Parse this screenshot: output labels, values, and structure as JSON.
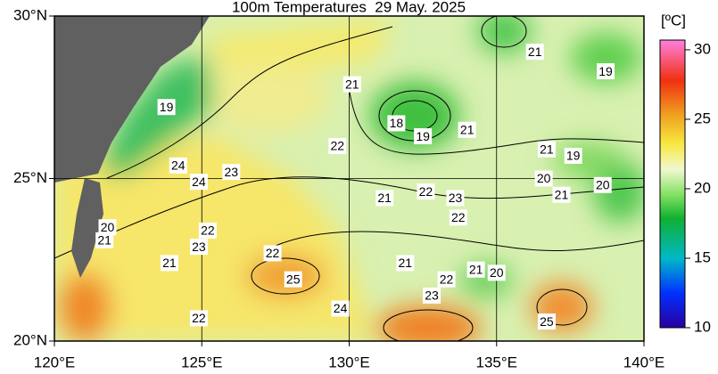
{
  "title": "100m Temperatures  29 May. 2025",
  "map": {
    "lonlim": [
      120,
      140
    ],
    "latlim": [
      20,
      30
    ],
    "xticks": [
      {
        "value": 120,
        "label": "120°E"
      },
      {
        "value": 125,
        "label": "125°E"
      },
      {
        "value": 130,
        "label": "130°E"
      },
      {
        "value": 135,
        "label": "135°E"
      },
      {
        "value": 140,
        "label": "140°E"
      }
    ],
    "yticks": [
      {
        "value": 20,
        "label": "20°N"
      },
      {
        "value": 25,
        "label": "25°N"
      },
      {
        "value": 30,
        "label": "30°N"
      }
    ],
    "contour_labels": [
      {
        "value": 19,
        "lon": 123.8,
        "lat": 27.2
      },
      {
        "value": 21,
        "lon": 130.1,
        "lat": 27.9
      },
      {
        "value": 21,
        "lon": 136.3,
        "lat": 28.9
      },
      {
        "value": 19,
        "lon": 138.7,
        "lat": 28.3
      },
      {
        "value": 18,
        "lon": 131.6,
        "lat": 26.7
      },
      {
        "value": 19,
        "lon": 132.5,
        "lat": 26.3
      },
      {
        "value": 21,
        "lon": 134.0,
        "lat": 26.5
      },
      {
        "value": 22,
        "lon": 129.6,
        "lat": 26.0
      },
      {
        "value": 24,
        "lon": 124.2,
        "lat": 25.4
      },
      {
        "value": 23,
        "lon": 126.0,
        "lat": 25.2
      },
      {
        "value": 24,
        "lon": 124.9,
        "lat": 24.9
      },
      {
        "value": 21,
        "lon": 136.7,
        "lat": 25.9
      },
      {
        "value": 19,
        "lon": 137.6,
        "lat": 25.7
      },
      {
        "value": 20,
        "lon": 136.6,
        "lat": 25.0
      },
      {
        "value": 21,
        "lon": 137.2,
        "lat": 24.5
      },
      {
        "value": 20,
        "lon": 138.6,
        "lat": 24.8
      },
      {
        "value": 21,
        "lon": 131.2,
        "lat": 24.4
      },
      {
        "value": 22,
        "lon": 132.6,
        "lat": 24.6
      },
      {
        "value": 23,
        "lon": 133.6,
        "lat": 24.4
      },
      {
        "value": 22,
        "lon": 133.7,
        "lat": 23.8
      },
      {
        "value": 20,
        "lon": 121.8,
        "lat": 23.5
      },
      {
        "value": 21,
        "lon": 121.7,
        "lat": 23.1
      },
      {
        "value": 22,
        "lon": 125.2,
        "lat": 23.4
      },
      {
        "value": 23,
        "lon": 124.9,
        "lat": 22.9
      },
      {
        "value": 22,
        "lon": 127.4,
        "lat": 22.7
      },
      {
        "value": 21,
        "lon": 123.9,
        "lat": 22.4
      },
      {
        "value": 21,
        "lon": 131.9,
        "lat": 22.4
      },
      {
        "value": 21,
        "lon": 134.3,
        "lat": 22.2
      },
      {
        "value": 20,
        "lon": 135.0,
        "lat": 22.1
      },
      {
        "value": 22,
        "lon": 133.3,
        "lat": 21.9
      },
      {
        "value": 25,
        "lon": 128.1,
        "lat": 21.9
      },
      {
        "value": 23,
        "lon": 132.8,
        "lat": 21.4
      },
      {
        "value": 24,
        "lon": 129.7,
        "lat": 21.0
      },
      {
        "value": 22,
        "lon": 124.9,
        "lat": 20.7
      },
      {
        "value": 25,
        "lon": 136.7,
        "lat": 20.6
      }
    ]
  },
  "colorbar": {
    "unit": "[ºC]",
    "range": [
      10,
      30.7
    ],
    "ticks": [
      10,
      15,
      20,
      25,
      30
    ]
  }
}
